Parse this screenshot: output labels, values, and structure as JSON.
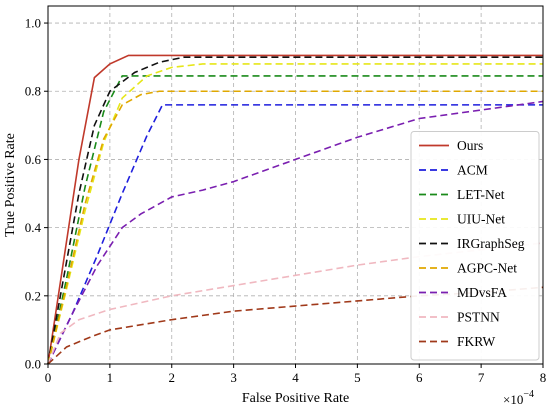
{
  "chart_data": {
    "type": "line",
    "title": "",
    "xlabel": "False Positive Rate",
    "ylabel": "True Positive Rate",
    "x_scale_label": "×10",
    "x_scale_exponent": "−4",
    "xlim": [
      0,
      8
    ],
    "ylim": [
      0,
      1.05
    ],
    "x_ticks": [
      0,
      1,
      2,
      3,
      4,
      5,
      6,
      7,
      8
    ],
    "y_ticks": [
      0.0,
      0.2,
      0.4,
      0.6,
      0.8,
      1.0
    ],
    "x_tick_labels": [
      "0",
      "1",
      "2",
      "3",
      "4",
      "5",
      "6",
      "7",
      "8"
    ],
    "y_tick_labels": [
      "0.0",
      "0.2",
      "0.4",
      "0.6",
      "0.8",
      "1.0"
    ],
    "grid": true,
    "legend_position": "lower-right",
    "series": [
      {
        "name": "Ours",
        "color": "#c0392b",
        "dash": "solid",
        "points": [
          [
            0,
            0
          ],
          [
            0.25,
            0.3
          ],
          [
            0.5,
            0.6
          ],
          [
            0.75,
            0.84
          ],
          [
            1.0,
            0.88
          ],
          [
            1.3,
            0.905
          ],
          [
            2,
            0.905
          ],
          [
            4,
            0.905
          ],
          [
            6,
            0.905
          ],
          [
            8,
            0.905
          ]
        ]
      },
      {
        "name": "ACM",
        "color": "#1f1fdd",
        "dash": "dashed",
        "points": [
          [
            0,
            0
          ],
          [
            0.4,
            0.15
          ],
          [
            0.8,
            0.32
          ],
          [
            1.2,
            0.5
          ],
          [
            1.6,
            0.67
          ],
          [
            1.85,
            0.76
          ],
          [
            2.5,
            0.76
          ],
          [
            4,
            0.76
          ],
          [
            6,
            0.76
          ],
          [
            8,
            0.76
          ]
        ]
      },
      {
        "name": "LET-Net",
        "color": "#1a8a1a",
        "dash": "dashed",
        "points": [
          [
            0,
            0
          ],
          [
            0.3,
            0.25
          ],
          [
            0.6,
            0.52
          ],
          [
            0.9,
            0.74
          ],
          [
            1.2,
            0.845
          ],
          [
            2,
            0.845
          ],
          [
            4,
            0.845
          ],
          [
            6,
            0.845
          ],
          [
            8,
            0.845
          ]
        ]
      },
      {
        "name": "UIU-Net",
        "color": "#e6e619",
        "dash": "dashed",
        "points": [
          [
            0,
            0
          ],
          [
            0.3,
            0.22
          ],
          [
            0.6,
            0.45
          ],
          [
            0.9,
            0.65
          ],
          [
            1.2,
            0.78
          ],
          [
            1.6,
            0.845
          ],
          [
            2.0,
            0.87
          ],
          [
            2.5,
            0.88
          ],
          [
            4,
            0.88
          ],
          [
            6,
            0.88
          ],
          [
            8,
            0.88
          ]
        ]
      },
      {
        "name": "IRGraphSeg",
        "color": "#111111",
        "dash": "dashed",
        "points": [
          [
            0,
            0
          ],
          [
            0.25,
            0.25
          ],
          [
            0.5,
            0.5
          ],
          [
            0.75,
            0.7
          ],
          [
            1.0,
            0.8
          ],
          [
            1.4,
            0.855
          ],
          [
            1.8,
            0.885
          ],
          [
            2.2,
            0.9
          ],
          [
            4,
            0.9
          ],
          [
            6,
            0.9
          ],
          [
            8,
            0.9
          ]
        ]
      },
      {
        "name": "AGPC-Net",
        "color": "#e0a800",
        "dash": "dashed",
        "points": [
          [
            0,
            0
          ],
          [
            0.3,
            0.23
          ],
          [
            0.6,
            0.47
          ],
          [
            0.9,
            0.66
          ],
          [
            1.2,
            0.76
          ],
          [
            1.5,
            0.79
          ],
          [
            1.8,
            0.8
          ],
          [
            4,
            0.8
          ],
          [
            6,
            0.8
          ],
          [
            8,
            0.8
          ]
        ]
      },
      {
        "name": "MDvsFA",
        "color": "#7a1fb0",
        "dash": "dashed",
        "points": [
          [
            0,
            0
          ],
          [
            0.4,
            0.15
          ],
          [
            0.8,
            0.29
          ],
          [
            1.2,
            0.4
          ],
          [
            1.5,
            0.44
          ],
          [
            2.0,
            0.49
          ],
          [
            2.5,
            0.51
          ],
          [
            3,
            0.535
          ],
          [
            4,
            0.6
          ],
          [
            5,
            0.665
          ],
          [
            6,
            0.72
          ],
          [
            7,
            0.745
          ],
          [
            8,
            0.77
          ]
        ]
      },
      {
        "name": "PSTNN",
        "color": "#f0b8c0",
        "dash": "dashed",
        "points": [
          [
            0,
            0
          ],
          [
            0.2,
            0.09
          ],
          [
            0.5,
            0.13
          ],
          [
            1,
            0.16
          ],
          [
            2,
            0.2
          ],
          [
            3,
            0.23
          ],
          [
            4,
            0.26
          ],
          [
            5,
            0.29
          ],
          [
            6,
            0.315
          ],
          [
            7,
            0.335
          ],
          [
            8,
            0.355
          ]
        ]
      },
      {
        "name": "FKRW",
        "color": "#a0391a",
        "dash": "dashed",
        "points": [
          [
            0,
            0
          ],
          [
            0.3,
            0.05
          ],
          [
            0.7,
            0.08
          ],
          [
            1,
            0.1
          ],
          [
            2,
            0.13
          ],
          [
            3,
            0.155
          ],
          [
            4,
            0.17
          ],
          [
            5,
            0.185
          ],
          [
            6,
            0.2
          ],
          [
            7,
            0.21
          ],
          [
            8,
            0.225
          ]
        ]
      }
    ]
  }
}
